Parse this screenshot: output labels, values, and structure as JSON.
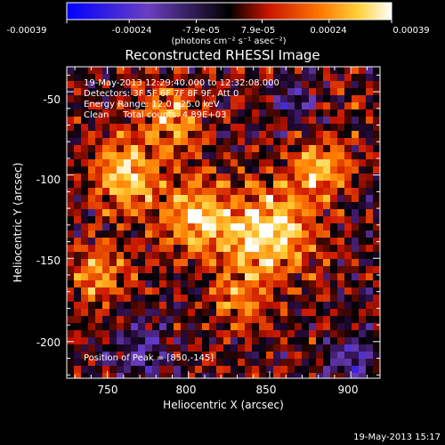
{
  "chart_data": {
    "type": "heatmap",
    "title": "Reconstructed RHESSI Image",
    "xlabel": "Heliocentric X (arcsec)",
    "ylabel": "Heliocentric Y (arcsec)",
    "xlim": [
      725,
      918
    ],
    "ylim": [
      -222,
      -35
    ],
    "x_ticks": [
      750,
      800,
      850,
      900
    ],
    "y_ticks": [
      -50,
      -100,
      -150,
      -200
    ],
    "colorbar": {
      "ticks": [
        "-0.00039",
        "-0.00024",
        "-7.9e-05",
        "7.9e-05",
        "0.00024",
        "0.00039"
      ],
      "tick_values": [
        -0.00039,
        -0.00024,
        -7.9e-05,
        7.9e-05,
        0.00024,
        0.00039
      ],
      "label": "(photons cm⁻² s⁻¹ asec⁻²)",
      "range": [
        -0.00039,
        0.00039
      ]
    },
    "annotations": [
      "19-May-2013 12:29:40.000 to 12:32:08.000",
      "Detectors: 3F 5F 6F 7F 8F 9F, Att 0",
      "Energy Range: 12.0 - 25.0 keV",
      "Clean     Total counts: 4.89E+03"
    ],
    "peak_label": "Position of Peak = [850,-145]",
    "peak": [
      850,
      -145
    ],
    "timestamp": "19-May-2013 15:17",
    "intensity_blobs": [
      {
        "x": 850,
        "y": -135,
        "sigma": 18,
        "amp": 0.95
      },
      {
        "x": 805,
        "y": -125,
        "sigma": 16,
        "amp": 0.75
      },
      {
        "x": 760,
        "y": -100,
        "sigma": 14,
        "amp": 0.8
      },
      {
        "x": 880,
        "y": -95,
        "sigma": 12,
        "amp": 0.7
      },
      {
        "x": 790,
        "y": -65,
        "sigma": 14,
        "amp": 0.55
      },
      {
        "x": 745,
        "y": -160,
        "sigma": 12,
        "amp": 0.55
      },
      {
        "x": 830,
        "y": -175,
        "sigma": 12,
        "amp": 0.45
      },
      {
        "x": 900,
        "y": -210,
        "sigma": 10,
        "amp": -0.55
      },
      {
        "x": 770,
        "y": -205,
        "sigma": 12,
        "amp": -0.45
      },
      {
        "x": 905,
        "y": -55,
        "sigma": 12,
        "amp": 0.1
      },
      {
        "x": 865,
        "y": -55,
        "sigma": 10,
        "amp": -0.35
      }
    ]
  }
}
